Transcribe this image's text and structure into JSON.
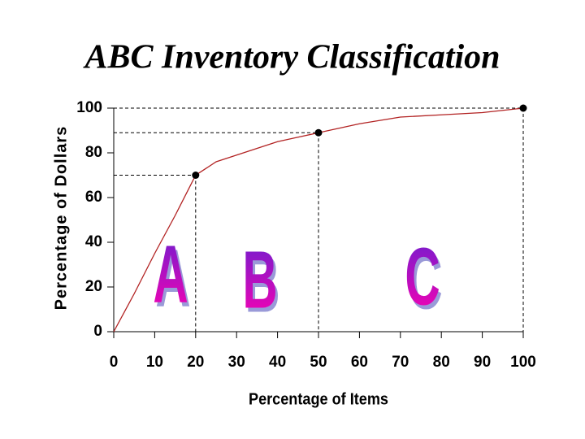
{
  "chart_data": {
    "type": "line",
    "title": "ABC Inventory Classification",
    "xlabel": "Percentage of Items",
    "ylabel": "Percentage of Dollars",
    "x": [
      0,
      5,
      10,
      15,
      20,
      25,
      30,
      35,
      40,
      45,
      50,
      60,
      70,
      80,
      90,
      100
    ],
    "series": [
      {
        "color": "#b22222",
        "values": [
          0,
          17,
          35,
          52,
          70,
          76,
          79,
          82,
          85,
          87,
          89,
          93,
          96,
          97,
          98,
          100
        ]
      }
    ],
    "points": {
      "x": [
        20,
        50,
        100
      ],
      "y": [
        70,
        89,
        100
      ],
      "color": "#000000"
    },
    "annotations": [
      "A",
      "B",
      "C"
    ],
    "xlim": [
      0,
      100
    ],
    "ylim": [
      0,
      100
    ],
    "xticks": [
      0,
      10,
      20,
      30,
      40,
      50,
      60,
      70,
      80,
      90,
      100
    ],
    "yticks": [
      0,
      20,
      40,
      60,
      80,
      100
    ]
  }
}
